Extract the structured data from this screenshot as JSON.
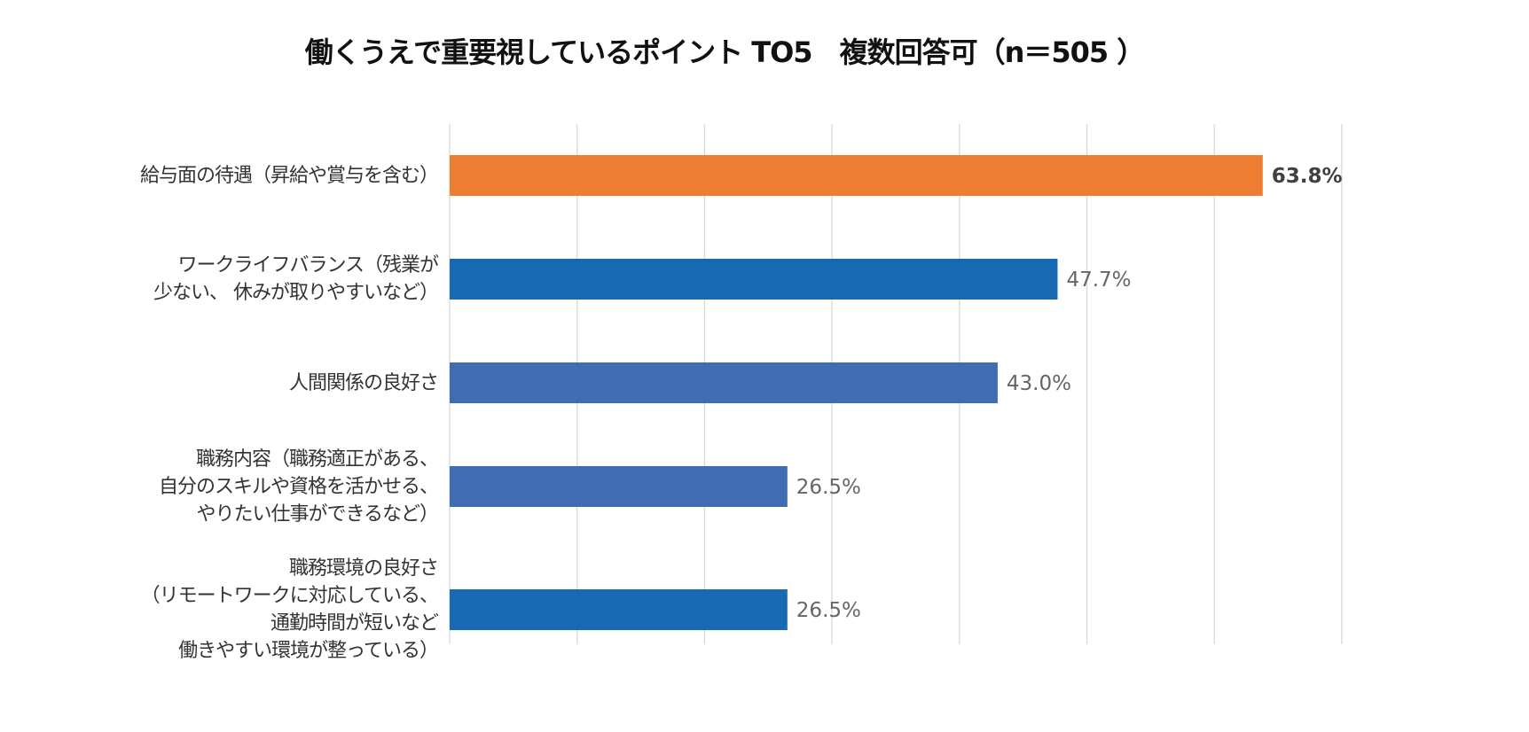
{
  "chart_data": {
    "type": "bar",
    "orientation": "horizontal",
    "title": "働くうえで重要視しているポイント TO5　複数回答可（n＝505 ）",
    "categories": [
      [
        "給与面の待遇（昇給や賞与を含む）"
      ],
      [
        "ワークライフバランス（残業が",
        "少ない、 休みが取りやすいなど）"
      ],
      [
        "人間関係の良好さ"
      ],
      [
        "職務内容（職務適正がある、",
        "自分のスキルや資格を活かせる、",
        "やりたい仕事ができるなど）"
      ],
      [
        "職務環境の良好さ",
        "（リモートワークに対応している、",
        "通勤時間が短いなど",
        "働きやすい環境が整っている）"
      ]
    ],
    "values": [
      63.8,
      47.7,
      43.0,
      26.5,
      26.5
    ],
    "data_labels": [
      "63.8%",
      "47.7%",
      "43.0%",
      "26.5%",
      "26.5%"
    ],
    "colors": [
      "#ED7D31",
      "#1669B2",
      "#3F6CB2",
      "#3F6CB2",
      "#1669B2"
    ],
    "xlim": [
      0,
      70
    ],
    "grid_step": 10,
    "grid": true,
    "x_tick_labels_shown": false,
    "legend": "none"
  }
}
